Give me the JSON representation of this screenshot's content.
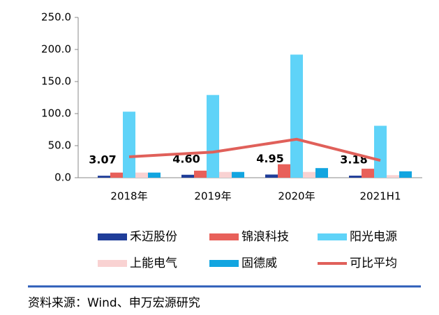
{
  "chart_data": {
    "type": "bar",
    "categories": [
      "2018年",
      "2019年",
      "2020年",
      "2021H1"
    ],
    "series": [
      {
        "name": "禾迈股份",
        "color": "#1f3d99",
        "values": [
          3.07,
          4.6,
          4.95,
          3.18
        ],
        "value_labels": [
          "3.07",
          "4.60",
          "4.95",
          "3.18"
        ]
      },
      {
        "name": "锦浪科技",
        "color": "#e8605a",
        "values": [
          8,
          11,
          21,
          14
        ]
      },
      {
        "name": "阳光电源",
        "color": "#5fd3f8",
        "values": [
          103,
          129,
          192,
          81
        ]
      },
      {
        "name": "上能电气",
        "color": "#f9d2d2",
        "values": [
          8,
          9,
          9,
          4
        ]
      },
      {
        "name": "固德威",
        "color": "#12a5e0",
        "values": [
          8,
          9,
          15,
          10
        ]
      },
      {
        "name": "可比平均",
        "color": "#e0605a",
        "type": "line",
        "values": [
          32.6,
          40,
          60,
          27
        ]
      }
    ],
    "ylim": [
      0,
      250
    ],
    "yticks": [
      {
        "value": 0,
        "label": "0.0"
      },
      {
        "value": 50,
        "label": "50.0"
      },
      {
        "value": 100,
        "label": "100.0"
      },
      {
        "value": 150,
        "label": "150.0"
      },
      {
        "value": 200,
        "label": "200.0"
      },
      {
        "value": 250,
        "label": "250.0"
      }
    ],
    "source": "资料来源：Wind、申万宏源研究"
  }
}
